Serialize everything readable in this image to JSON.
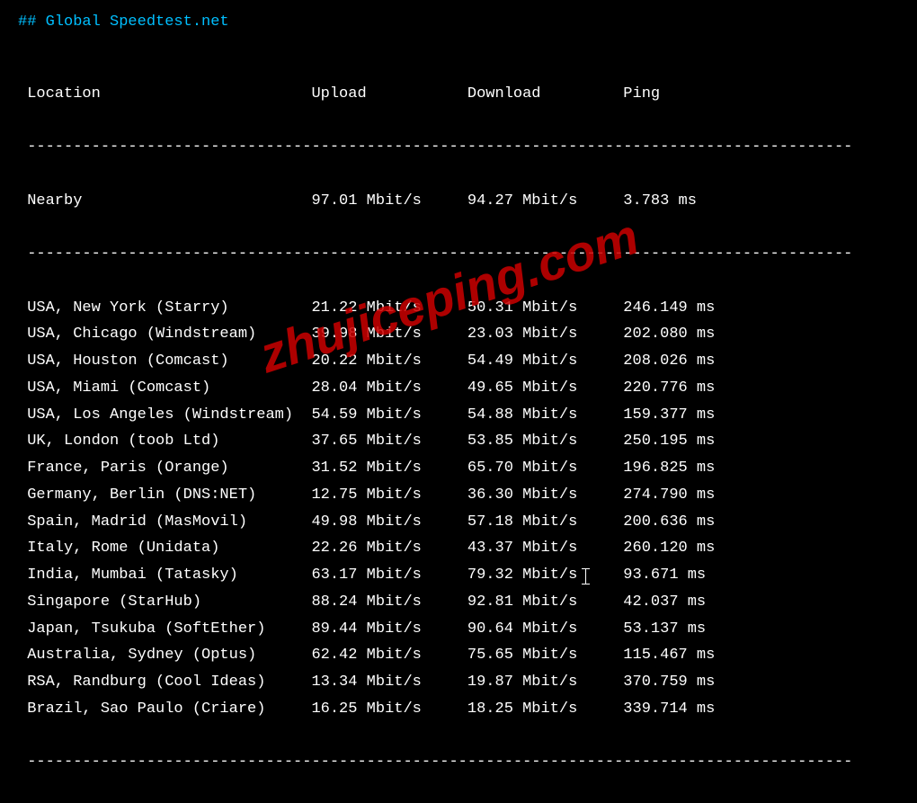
{
  "title": "## Global Speedtest.net",
  "columns": {
    "location": "Location",
    "upload": "Upload",
    "download": "Download",
    "ping": "Ping"
  },
  "nearby": {
    "label": "Nearby",
    "upload": "97.01 Mbit/s",
    "download": "94.27 Mbit/s",
    "ping": "3.783 ms"
  },
  "rows": [
    {
      "location": "USA, New York (Starry)",
      "upload": "21.22 Mbit/s",
      "download": "50.31 Mbit/s",
      "ping": "246.149 ms"
    },
    {
      "location": "USA, Chicago (Windstream)",
      "upload": "39.98 Mbit/s",
      "download": "23.03 Mbit/s",
      "ping": "202.080 ms"
    },
    {
      "location": "USA, Houston (Comcast)",
      "upload": "20.22 Mbit/s",
      "download": "54.49 Mbit/s",
      "ping": "208.026 ms"
    },
    {
      "location": "USA, Miami (Comcast)",
      "upload": "28.04 Mbit/s",
      "download": "49.65 Mbit/s",
      "ping": "220.776 ms"
    },
    {
      "location": "USA, Los Angeles (Windstream)",
      "upload": "54.59 Mbit/s",
      "download": "54.88 Mbit/s",
      "ping": "159.377 ms"
    },
    {
      "location": "UK, London (toob Ltd)",
      "upload": "37.65 Mbit/s",
      "download": "53.85 Mbit/s",
      "ping": "250.195 ms"
    },
    {
      "location": "France, Paris (Orange)",
      "upload": "31.52 Mbit/s",
      "download": "65.70 Mbit/s",
      "ping": "196.825 ms"
    },
    {
      "location": "Germany, Berlin (DNS:NET)",
      "upload": "12.75 Mbit/s",
      "download": "36.30 Mbit/s",
      "ping": "274.790 ms"
    },
    {
      "location": "Spain, Madrid (MasMovil)",
      "upload": "49.98 Mbit/s",
      "download": "57.18 Mbit/s",
      "ping": "200.636 ms"
    },
    {
      "location": "Italy, Rome (Unidata)",
      "upload": "22.26 Mbit/s",
      "download": "43.37 Mbit/s",
      "ping": "260.120 ms"
    },
    {
      "location": "India, Mumbai (Tatasky)",
      "upload": "63.17 Mbit/s",
      "download": "79.32 Mbit/s",
      "ping": "93.671 ms"
    },
    {
      "location": "Singapore (StarHub)",
      "upload": "88.24 Mbit/s",
      "download": "92.81 Mbit/s",
      "ping": "42.037 ms"
    },
    {
      "location": "Japan, Tsukuba (SoftEther)",
      "upload": "89.44 Mbit/s",
      "download": "90.64 Mbit/s",
      "ping": "53.137 ms"
    },
    {
      "location": "Australia, Sydney (Optus)",
      "upload": "62.42 Mbit/s",
      "download": "75.65 Mbit/s",
      "ping": "115.467 ms"
    },
    {
      "location": "RSA, Randburg (Cool Ideas)",
      "upload": "13.34 Mbit/s",
      "download": "19.87 Mbit/s",
      "ping": "370.759 ms"
    },
    {
      "location": "Brazil, Sao Paulo (Criare)",
      "upload": "16.25 Mbit/s",
      "download": "18.25 Mbit/s",
      "ping": "339.714 ms"
    }
  ],
  "watermark": "zhujiceping.com",
  "layout": {
    "col_location_width": 32,
    "col_upload_width": 17,
    "col_download_width": 17,
    "col_ping_width": 12,
    "divider_char": "-",
    "divider_width": 90
  },
  "colors": {
    "background": "#000000",
    "text": "#ffffff",
    "title": "#00bfff",
    "watermark": "#cc0000"
  },
  "typography": {
    "font_family": "Consolas, Monaco, Courier New, monospace",
    "font_size_pt": 13,
    "watermark_font_size_pt": 42,
    "watermark_font_family": "Arial, sans-serif"
  }
}
